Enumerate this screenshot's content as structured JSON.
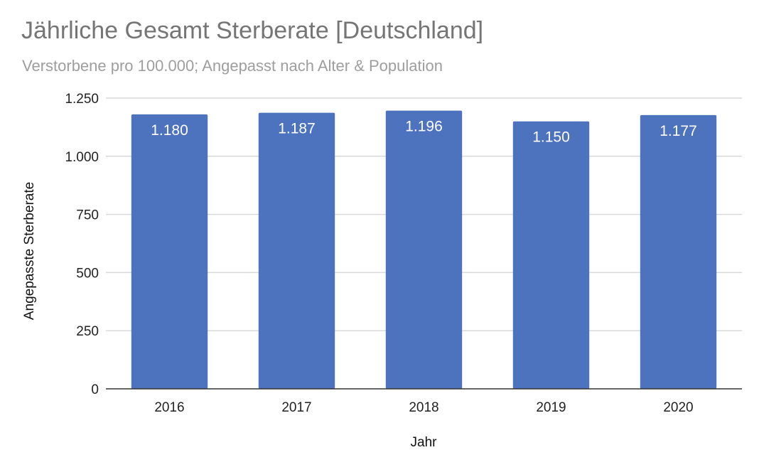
{
  "chart_data": {
    "type": "bar",
    "title": "Jährliche Gesamt Sterberate [Deutschland]",
    "subtitle": "Verstorbene pro 100.000; Angepasst nach Alter & Population",
    "xlabel": "Jahr",
    "ylabel": "Angepasste Sterberate",
    "categories": [
      "2016",
      "2017",
      "2018",
      "2019",
      "2020"
    ],
    "values": [
      1180,
      1187,
      1196,
      1150,
      1177
    ],
    "value_labels": [
      "1.180",
      "1.187",
      "1.196",
      "1.150",
      "1.177"
    ],
    "ylim": [
      0,
      1250
    ],
    "yticks": [
      0,
      250,
      500,
      750,
      1000,
      1250
    ],
    "ytick_labels": [
      "0",
      "250",
      "500",
      "750",
      "1.000",
      "1.250"
    ],
    "grid": true,
    "legend": "none",
    "colors": {
      "bar": "#4e73be",
      "grid": "#d9d9d9",
      "axis": "#333333"
    }
  }
}
